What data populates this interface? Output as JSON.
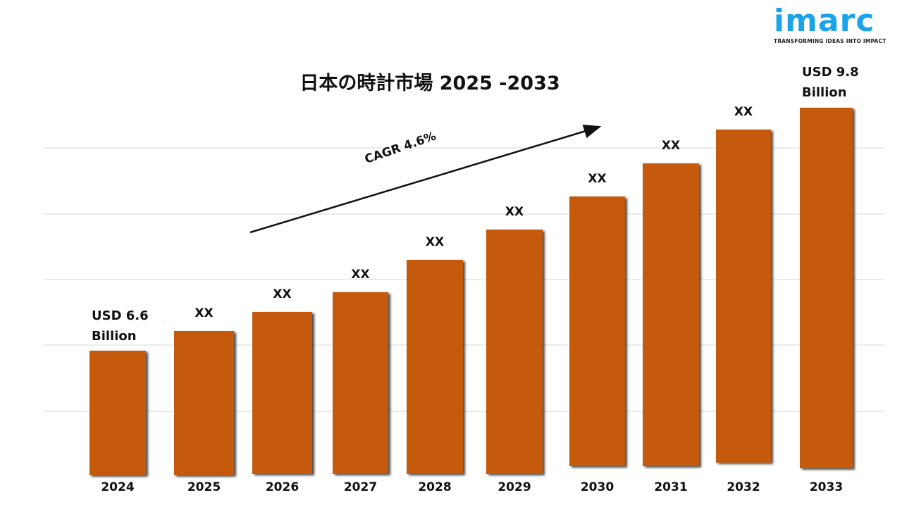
{
  "logo": {
    "word": "imarc",
    "tagline": "TRANSFORMING IDEAS INTO IMPACT",
    "color": "#1aa3e8"
  },
  "chart_data": {
    "type": "bar",
    "title": "日本の時計市場 2025 -2033",
    "categories": [
      "2024",
      "2025",
      "2026",
      "2027",
      "2028",
      "2029",
      "2030",
      "2031",
      "2032",
      "2033"
    ],
    "values": [
      6.6,
      null,
      null,
      null,
      null,
      null,
      null,
      null,
      null,
      9.8
    ],
    "unit": "USD Billion",
    "data_labels": [
      [
        "USD 6.6",
        "Billion"
      ],
      [
        "XX"
      ],
      [
        "XX"
      ],
      [
        "XX"
      ],
      [
        "XX"
      ],
      [
        "XX"
      ],
      [
        "XX"
      ],
      [
        "XX"
      ],
      [
        "XX"
      ],
      [
        "USD 9.8",
        "Billion"
      ]
    ],
    "annotation": "CAGR 4.6%",
    "bar_color": "#c55a11",
    "grid": true,
    "legend": "none"
  }
}
